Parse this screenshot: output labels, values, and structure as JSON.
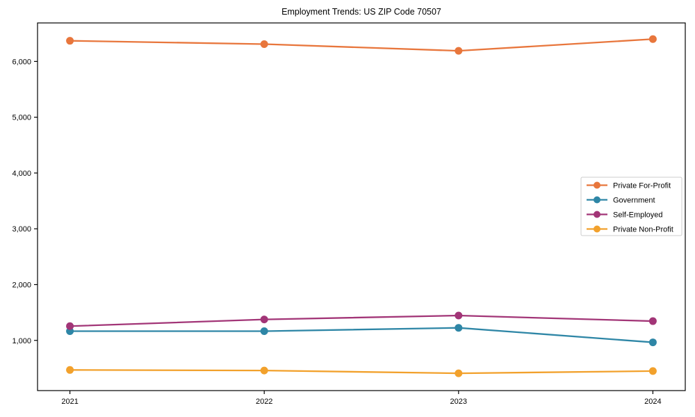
{
  "chart": {
    "title": "Employment Trends: US ZIP Code 70507"
  },
  "chart_data": {
    "type": "line",
    "title": "Employment Trends: US ZIP Code 70507",
    "categories": [
      "2021",
      "2022",
      "2023",
      "2024"
    ],
    "series": [
      {
        "name": "Private For-Profit",
        "color": "#E8763C",
        "values": [
          6370,
          6310,
          6190,
          6400
        ]
      },
      {
        "name": "Government",
        "color": "#2E86A6",
        "values": [
          1165,
          1165,
          1225,
          965
        ]
      },
      {
        "name": "Self-Employed",
        "color": "#A23577",
        "values": [
          1255,
          1375,
          1445,
          1345
        ]
      },
      {
        "name": "Private Non-Profit",
        "color": "#F2A12C",
        "values": [
          470,
          460,
          410,
          450
        ]
      }
    ],
    "xlabel": "",
    "ylabel": "",
    "ylim": [
      100,
      6690
    ],
    "yticks": [
      1000,
      2000,
      3000,
      4000,
      5000,
      6000
    ],
    "ytick_labels": [
      "1,000",
      "2,000",
      "3,000",
      "4,000",
      "5,000",
      "6,000"
    ],
    "grid": false,
    "legend_position": "center-right",
    "marker": "circle",
    "axis_color": "#000000",
    "legend_border_color": "#cccccc"
  }
}
